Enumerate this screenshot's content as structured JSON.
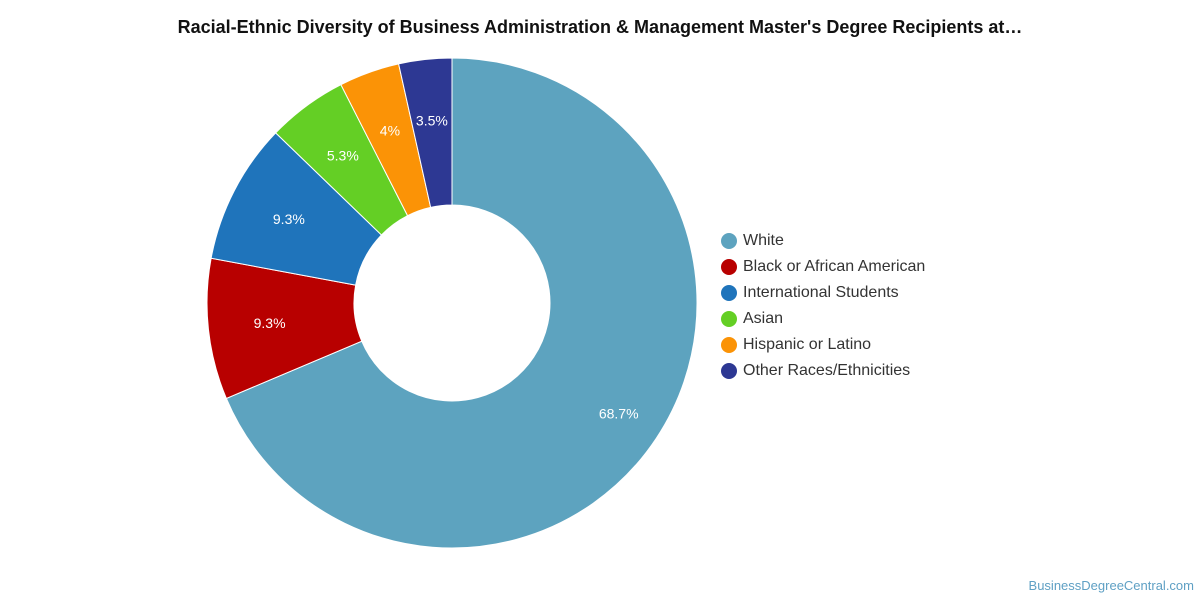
{
  "chart_data": {
    "type": "pie",
    "style": "donut",
    "title": "Racial-Ethnic Diversity of Business Administration & Management Master's Degree Recipients at…",
    "legend_position": "right",
    "slices": [
      {
        "label": "White",
        "value": 68.7,
        "value_label": "68.7%",
        "color": "#5da3bf"
      },
      {
        "label": "Black or African American",
        "value": 9.3,
        "value_label": "9.3%",
        "color": "#b80000"
      },
      {
        "label": "International Students",
        "value": 9.3,
        "value_label": "9.3%",
        "color": "#1f74bb"
      },
      {
        "label": "Asian",
        "value": 5.3,
        "value_label": "5.3%",
        "color": "#64cf25"
      },
      {
        "label": "Hispanic or Latino",
        "value": 4,
        "value_label": "4%",
        "color": "#fb9306"
      },
      {
        "label": "Other Races/Ethnicities",
        "value": 3.5,
        "value_label": "3.5%",
        "color": "#2d3893"
      }
    ]
  },
  "credit": "BusinessDegreeCentral.com"
}
